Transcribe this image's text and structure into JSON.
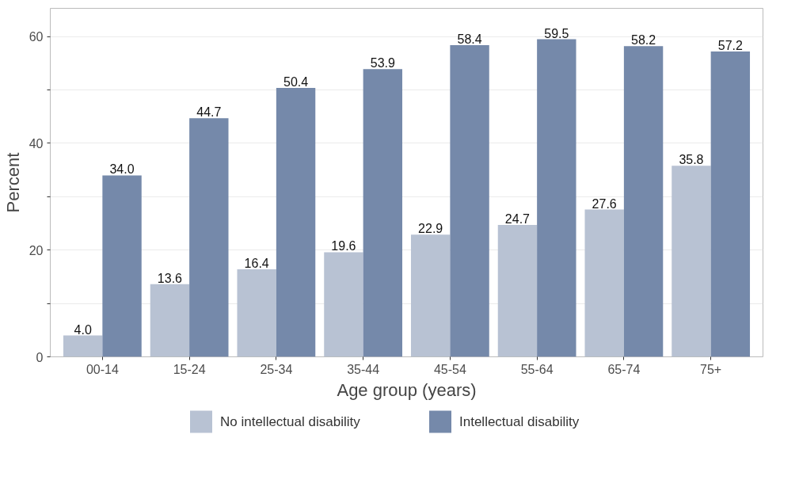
{
  "chart_data": {
    "type": "bar",
    "xlabel": "Age group (years)",
    "ylabel": "Percent",
    "categories": [
      "00-14",
      "15-24",
      "25-34",
      "35-44",
      "45-54",
      "55-64",
      "65-74",
      "75+"
    ],
    "series": [
      {
        "name": "No intellectual disability",
        "color": "#b8c2d3",
        "values": [
          4.0,
          13.6,
          16.4,
          19.6,
          22.9,
          24.7,
          27.6,
          35.8
        ],
        "value_labels": [
          "4.0",
          "13.6",
          "16.4",
          "19.6",
          "22.9",
          "24.7",
          "27.6",
          "35.8"
        ]
      },
      {
        "name": "Intellectual disability",
        "color": "#7589aa",
        "values": [
          34.0,
          44.7,
          50.4,
          53.9,
          58.4,
          59.5,
          58.2,
          57.2
        ],
        "value_labels": [
          "34.0",
          "44.7",
          "50.4",
          "53.9",
          "58.4",
          "59.5",
          "58.2",
          "57.2"
        ]
      }
    ],
    "ylim": [
      0,
      65.3
    ],
    "yticks": [
      0,
      {
        "value": 10,
        "label": null
      },
      20,
      {
        "value": 30,
        "label": null
      },
      40,
      {
        "value": 50,
        "label": null
      },
      60
    ],
    "grid": "y",
    "legend": "bottom"
  }
}
